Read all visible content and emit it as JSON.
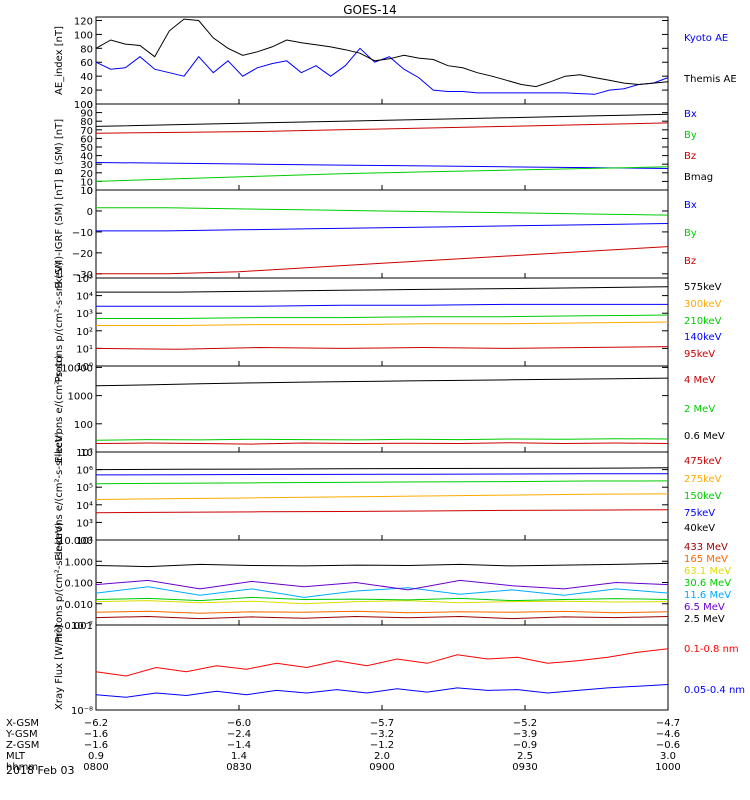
{
  "title": "GOES-14",
  "date_label": "2018 Feb 03",
  "chart_data": [
    {
      "type": "line",
      "ylabel": "AE_index [nT]",
      "ylim": [
        0,
        125
      ],
      "ticks": [
        0,
        20,
        40,
        60,
        80,
        100,
        120
      ],
      "tick_labels": [
        "0",
        "20",
        "40",
        "60",
        "80",
        "100",
        "120"
      ],
      "log": false,
      "series": [
        {
          "name": "Kyoto AE",
          "color": "#0000ff",
          "values": [
            60,
            50,
            52,
            68,
            50,
            45,
            40,
            68,
            45,
            62,
            40,
            52,
            58,
            62,
            45,
            55,
            40,
            55,
            80,
            60,
            68,
            50,
            38,
            20,
            18,
            18,
            16,
            16,
            16,
            16,
            16,
            16,
            16,
            15,
            14,
            20,
            22,
            28,
            30,
            38
          ]
        },
        {
          "name": "Themis AE",
          "color": "#000000",
          "values": [
            80,
            92,
            86,
            84,
            68,
            105,
            122,
            120,
            95,
            80,
            70,
            75,
            82,
            92,
            88,
            85,
            82,
            78,
            73,
            62,
            65,
            70,
            66,
            64,
            55,
            52,
            45,
            40,
            34,
            28,
            25,
            32,
            40,
            42,
            38,
            34,
            30,
            28,
            30,
            32
          ]
        }
      ]
    },
    {
      "type": "line",
      "ylabel": "B (SM) [nT]",
      "ylim": [
        0,
        100
      ],
      "ticks": [
        0,
        10,
        20,
        30,
        40,
        50,
        60,
        70,
        80,
        90,
        100
      ],
      "tick_labels": [
        "0",
        "10",
        "20",
        "30",
        "40",
        "50",
        "60",
        "70",
        "80",
        "90",
        "100"
      ],
      "log": false,
      "series": [
        {
          "name": "Bx",
          "color": "#0000ff",
          "values": [
            32,
            31,
            30,
            29,
            28,
            27,
            26,
            25
          ]
        },
        {
          "name": "By",
          "color": "#00cc00",
          "values": [
            10,
            13,
            16,
            19,
            21,
            23,
            25,
            27
          ]
        },
        {
          "name": "Bz",
          "color": "#cc0000",
          "values": [
            66,
            67,
            68,
            70,
            72,
            74,
            76,
            78
          ]
        },
        {
          "name": "Bmag",
          "color": "#000000",
          "values": [
            74,
            76,
            78,
            80,
            82,
            84,
            86,
            88
          ]
        }
      ]
    },
    {
      "type": "line",
      "ylabel": "B (SM)-IGRF (SM) [nT]",
      "ylim": [
        -32,
        10
      ],
      "ticks": [
        -30,
        -20,
        -10,
        0,
        10
      ],
      "tick_labels": [
        "−30",
        "−20",
        "−10",
        "0",
        "10"
      ],
      "log": false,
      "series": [
        {
          "name": "Bx",
          "color": "#0000ff",
          "values": [
            -9.5,
            -9.5,
            -9,
            -8.5,
            -8,
            -7.5,
            -7,
            -6.5,
            -6
          ]
        },
        {
          "name": "By",
          "color": "#00cc00",
          "values": [
            1.5,
            1.5,
            1,
            0.5,
            0,
            -0.5,
            -1,
            -1.5,
            -2
          ]
        },
        {
          "name": "Bz",
          "color": "#cc0000",
          "values": [
            -30,
            -30,
            -29,
            -27,
            -25,
            -23,
            -21,
            -19,
            -17
          ]
        }
      ]
    },
    {
      "type": "line",
      "ylabel": "Protons p/(cm²-s-sr-keV)",
      "ylim": [
        0,
        5
      ],
      "ticks": [
        0,
        1,
        2,
        3,
        4,
        5
      ],
      "tick_labels": [
        "10⁰",
        "10¹",
        "10²",
        "10³",
        "10⁴",
        "10⁵"
      ],
      "log": true,
      "series": [
        {
          "name": "575keV",
          "color": "#000000",
          "values": [
            4.2,
            4.2,
            4.25,
            4.3,
            4.35,
            4.4,
            4.45,
            4.5
          ]
        },
        {
          "name": "300keV",
          "color": "#ffaa00",
          "values": [
            2.3,
            2.3,
            2.35,
            2.35,
            2.4,
            2.4,
            2.45,
            2.5
          ]
        },
        {
          "name": "210keV",
          "color": "#00cc00",
          "values": [
            2.7,
            2.7,
            2.75,
            2.75,
            2.8,
            2.8,
            2.85,
            2.9
          ]
        },
        {
          "name": "140keV",
          "color": "#0000ff",
          "values": [
            3.4,
            3.4,
            3.4,
            3.45,
            3.45,
            3.5,
            3.5,
            3.5
          ]
        },
        {
          "name": "95keV",
          "color": "#cc0000",
          "values": [
            1.0,
            0.95,
            1.05,
            1.0,
            1.05,
            1.0,
            1.05,
            1.1
          ]
        }
      ]
    },
    {
      "type": "line",
      "ylabel": "Electrons e/(cm²-s-sr)",
      "ylim": [
        1,
        4.05
      ],
      "ticks": [
        1,
        2,
        3,
        4
      ],
      "tick_labels": [
        "10",
        "100",
        "1000",
        "10000"
      ],
      "log": true,
      "series": [
        {
          "name": "4 MeV",
          "color": "#cc0000",
          "values": [
            1.3,
            1.32,
            1.3,
            1.28,
            1.32,
            1.3,
            1.31,
            1.3,
            1.33,
            1.3,
            1.32,
            1.3
          ]
        },
        {
          "name": "2 MeV",
          "color": "#00cc00",
          "values": [
            1.42,
            1.44,
            1.43,
            1.45,
            1.44,
            1.43,
            1.45,
            1.44,
            1.46,
            1.45,
            1.47,
            1.46
          ]
        },
        {
          "name": "0.6 MeV",
          "color": "#000000",
          "values": [
            3.35,
            3.38,
            3.42,
            3.45,
            3.48,
            3.5,
            3.52,
            3.54,
            3.56,
            3.58,
            3.6,
            3.62
          ]
        }
      ]
    },
    {
      "type": "line",
      "ylabel": "Electrons e/(cm²-s-sr-keV)",
      "ylim": [
        2,
        7
      ],
      "ticks": [
        2,
        3,
        4,
        5,
        6,
        7
      ],
      "tick_labels": [
        "10²",
        "10³",
        "10⁴",
        "10⁵",
        "10⁶",
        "10⁷"
      ],
      "log": true,
      "series": [
        {
          "name": "475keV",
          "color": "#cc0000",
          "values": [
            3.55,
            3.58,
            3.6,
            3.62,
            3.65,
            3.68,
            3.7,
            3.72
          ]
        },
        {
          "name": "275keV",
          "color": "#ffaa00",
          "values": [
            4.3,
            4.35,
            4.4,
            4.45,
            4.5,
            4.55,
            4.6,
            4.62
          ]
        },
        {
          "name": "150keV",
          "color": "#00cc00",
          "values": [
            5.2,
            5.22,
            5.25,
            5.27,
            5.3,
            5.32,
            5.35,
            5.36
          ]
        },
        {
          "name": "75keV",
          "color": "#0000ff",
          "values": [
            5.7,
            5.71,
            5.72,
            5.73,
            5.74,
            5.75,
            5.76,
            5.76
          ]
        },
        {
          "name": "40keV",
          "color": "#000000",
          "values": [
            6.0,
            6.02,
            6.03,
            6.05,
            6.06,
            6.07,
            6.08,
            6.1
          ]
        }
      ]
    },
    {
      "type": "line",
      "ylabel": "Protons p/(cm²-s-sr-keV)",
      "ylim": [
        -3,
        1
      ],
      "ticks": [
        -3,
        -2,
        -1,
        0,
        1
      ],
      "tick_labels": [
        "0.001",
        "0.010",
        "0.100",
        "1.000",
        "10.000"
      ],
      "log": true,
      "series": [
        {
          "name": "433 MeV",
          "color": "#990000",
          "values": [
            -2.65,
            -2.6,
            -2.7,
            -2.62,
            -2.68,
            -2.6,
            -2.66,
            -2.6,
            -2.7,
            -2.62,
            -2.65,
            -2.6
          ]
        },
        {
          "name": "165 MeV",
          "color": "#ff6600",
          "values": [
            -2.4,
            -2.35,
            -2.45,
            -2.38,
            -2.4,
            -2.35,
            -2.42,
            -2.38,
            -2.4,
            -2.36,
            -2.42,
            -2.38
          ]
        },
        {
          "name": "63.1 MeV",
          "color": "#dddd00",
          "values": [
            -1.9,
            -1.85,
            -1.95,
            -1.88,
            -2.0,
            -1.9,
            -1.85,
            -1.95,
            -1.9,
            -1.88,
            -1.92,
            -1.9
          ]
        },
        {
          "name": "30.6 MeV",
          "color": "#00cc00",
          "values": [
            -1.8,
            -1.75,
            -1.85,
            -1.7,
            -1.8,
            -1.78,
            -1.82,
            -1.75,
            -1.85,
            -1.8,
            -1.76,
            -1.8
          ]
        },
        {
          "name": "11.6 MeV",
          "color": "#00aaff",
          "values": [
            -1.5,
            -1.2,
            -1.6,
            -1.3,
            -1.7,
            -1.4,
            -1.25,
            -1.55,
            -1.35,
            -1.6,
            -1.3,
            -1.5
          ]
        },
        {
          "name": "6.5 MeV",
          "color": "#6600cc",
          "values": [
            -1.1,
            -0.9,
            -1.3,
            -0.95,
            -1.2,
            -1.0,
            -1.35,
            -0.9,
            -1.15,
            -1.3,
            -1.0,
            -1.1
          ]
        },
        {
          "name": "2.5 MeV",
          "color": "#000000",
          "values": [
            -0.2,
            -0.25,
            -0.15,
            -0.2,
            -0.22,
            -0.18,
            -0.2,
            -0.15,
            -0.22,
            -0.18,
            -0.15,
            -0.1
          ]
        }
      ]
    },
    {
      "type": "line",
      "ylabel": "Xray Flux [W/m²]",
      "ylim": [
        -8,
        -7
      ],
      "ticks": [
        -8,
        -7
      ],
      "tick_labels": [
        "10⁻⁸",
        "10⁻⁷"
      ],
      "log": true,
      "series": [
        {
          "name": "0.1-0.8 nm",
          "color": "#ff0000",
          "values": [
            -7.55,
            -7.6,
            -7.5,
            -7.55,
            -7.48,
            -7.52,
            -7.45,
            -7.5,
            -7.42,
            -7.48,
            -7.4,
            -7.45,
            -7.35,
            -7.4,
            -7.38,
            -7.45,
            -7.42,
            -7.38,
            -7.32,
            -7.28
          ]
        },
        {
          "name": "0.05-0.4 nm",
          "color": "#0000ff",
          "values": [
            -7.82,
            -7.85,
            -7.8,
            -7.83,
            -7.78,
            -7.82,
            -7.77,
            -7.8,
            -7.76,
            -7.8,
            -7.75,
            -7.79,
            -7.74,
            -7.77,
            -7.76,
            -7.8,
            -7.77,
            -7.74,
            -7.72,
            -7.7
          ]
        }
      ]
    }
  ],
  "x_axis": {
    "row_labels": [
      "X-GSM",
      "Y-GSM",
      "Z-GSM",
      "MLT",
      "hhmm"
    ],
    "columns": [
      {
        "values": [
          "−6.2",
          "−1.6",
          "−1.6",
          "0.9",
          "0800"
        ]
      },
      {
        "values": [
          "−6.0",
          "−2.4",
          "−1.4",
          "1.4",
          "0830"
        ]
      },
      {
        "values": [
          "−5.7",
          "−3.2",
          "−1.2",
          "2.0",
          "0900"
        ]
      },
      {
        "values": [
          "−5.2",
          "−3.9",
          "−0.9",
          "2.5",
          "0930"
        ]
      },
      {
        "values": [
          "−4.7",
          "−4.6",
          "−0.6",
          "3.0",
          "1000"
        ]
      }
    ]
  }
}
